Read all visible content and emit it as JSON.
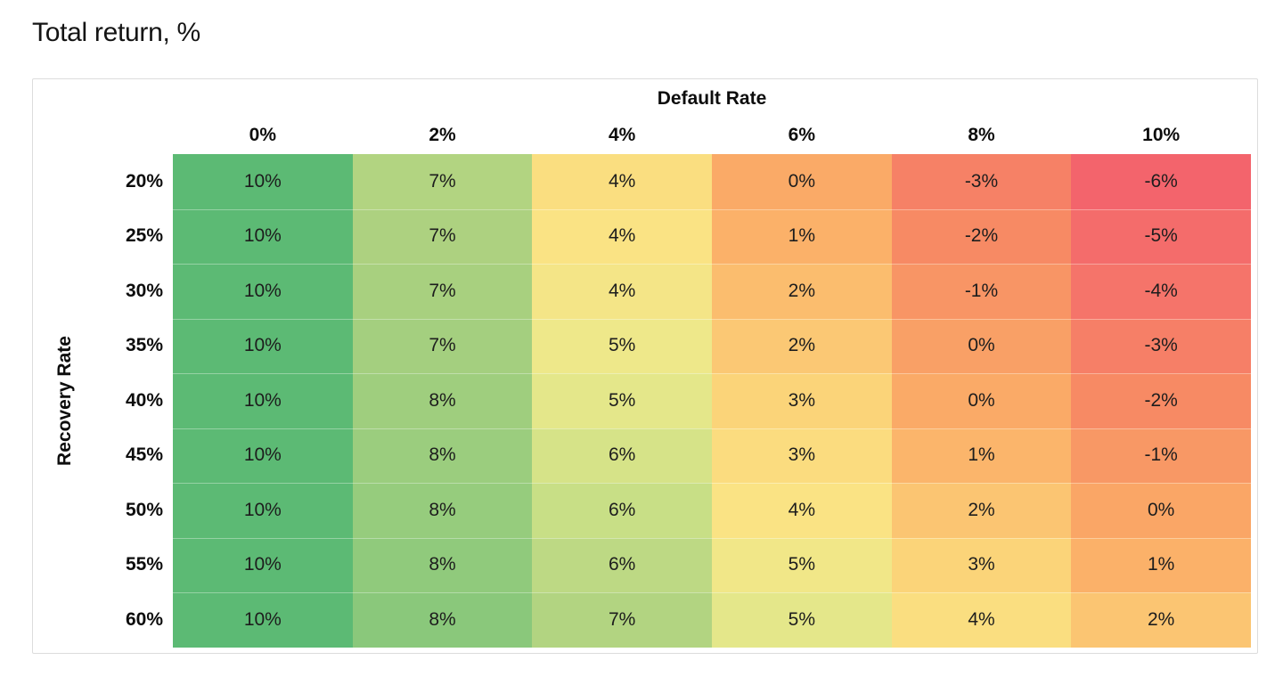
{
  "title": "Total return, %",
  "colors": {
    "card_border": "#dcdcdc",
    "text": "#1a1a1a",
    "scale_high": "#5cba74",
    "scale_mid": "#fae384",
    "scale_low": "#f3646c"
  },
  "chart_data": {
    "type": "heatmap",
    "title": "Total return, %",
    "xlabel": "Default Rate",
    "ylabel": "Recovery Rate",
    "x_categories": [
      "0%",
      "2%",
      "4%",
      "6%",
      "8%",
      "10%"
    ],
    "y_categories": [
      "20%",
      "25%",
      "30%",
      "35%",
      "40%",
      "45%",
      "50%",
      "55%",
      "60%"
    ],
    "values": [
      [
        10,
        7,
        4,
        0,
        -3,
        -6
      ],
      [
        10,
        7,
        4,
        1,
        -2,
        -5
      ],
      [
        10,
        7,
        4,
        2,
        -1,
        -4
      ],
      [
        10,
        7,
        5,
        2,
        0,
        -3
      ],
      [
        10,
        8,
        5,
        3,
        0,
        -2
      ],
      [
        10,
        8,
        6,
        3,
        1,
        -1
      ],
      [
        10,
        8,
        6,
        4,
        2,
        0
      ],
      [
        10,
        8,
        6,
        5,
        3,
        1
      ],
      [
        10,
        8,
        7,
        5,
        4,
        2
      ]
    ],
    "cell_labels": [
      [
        "10%",
        "7%",
        "4%",
        "0%",
        "-3%",
        "-6%"
      ],
      [
        "10%",
        "7%",
        "4%",
        "1%",
        "-2%",
        "-5%"
      ],
      [
        "10%",
        "7%",
        "4%",
        "2%",
        "-1%",
        "-4%"
      ],
      [
        "10%",
        "7%",
        "5%",
        "2%",
        "0%",
        "-3%"
      ],
      [
        "10%",
        "8%",
        "5%",
        "3%",
        "0%",
        "-2%"
      ],
      [
        "10%",
        "8%",
        "6%",
        "3%",
        "1%",
        "-1%"
      ],
      [
        "10%",
        "8%",
        "6%",
        "4%",
        "2%",
        "0%"
      ],
      [
        "10%",
        "8%",
        "6%",
        "5%",
        "3%",
        "1%"
      ],
      [
        "10%",
        "8%",
        "7%",
        "5%",
        "4%",
        "2%"
      ]
    ],
    "cell_colors": [
      [
        "#5cba74",
        "#b2d481",
        "#fade80",
        "#faaa67",
        "#f68166",
        "#f3646c"
      ],
      [
        "#5cba74",
        "#add180",
        "#fae384",
        "#fbb169",
        "#f78a64",
        "#f46c6b"
      ],
      [
        "#5cba74",
        "#a8d07f",
        "#f4e587",
        "#fbbd6e",
        "#f89565",
        "#f5746a"
      ],
      [
        "#5cba74",
        "#a4cf7f",
        "#eee88a",
        "#fbc874",
        "#f9a066",
        "#f67f67"
      ],
      [
        "#5cba74",
        "#9fce7e",
        "#e4e78a",
        "#fbd479",
        "#faaa67",
        "#f78a64"
      ],
      [
        "#5cba74",
        "#9bcd7e",
        "#d6e388",
        "#fbdc7f",
        "#fbb56b",
        "#f89865"
      ],
      [
        "#5cba74",
        "#96cc7d",
        "#c8df86",
        "#fae384",
        "#fbc572",
        "#faa666"
      ],
      [
        "#5cba74",
        "#90ca7c",
        "#bdd984",
        "#f1e788",
        "#fbd479",
        "#fbb169"
      ],
      [
        "#5cba74",
        "#8ac87b",
        "#b2d481",
        "#e4e78a",
        "#fade80",
        "#fbc572"
      ]
    ],
    "legend": "none",
    "grid": "off",
    "color_scale_domain": [
      -6,
      10
    ]
  }
}
